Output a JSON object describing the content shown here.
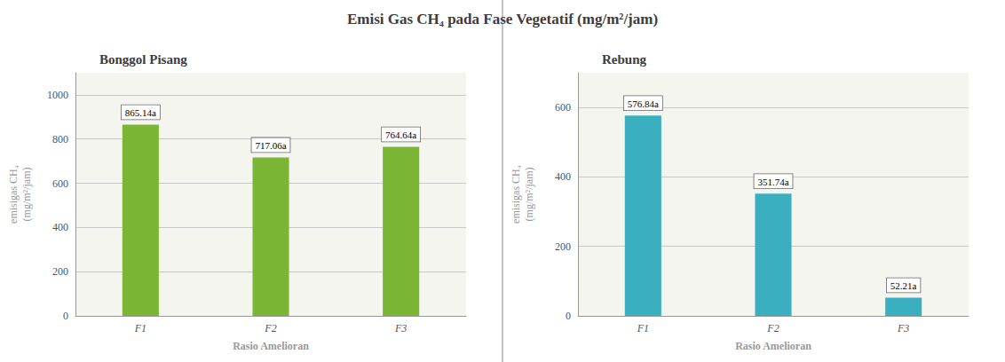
{
  "title": "Emisi Gas CH₄ pada Fase Vegetatif (mg/m²/jam)",
  "chart_data": [
    {
      "type": "bar",
      "title": "Bonggol Pisang",
      "xlabel": "Rasio Amelioran",
      "ylabel": "emisigas CH₄\n(mg/m²/jam)",
      "categories": [
        "F1",
        "F2",
        "F3"
      ],
      "values": [
        865.14,
        717.06,
        764.64
      ],
      "value_labels": [
        "865.14a",
        "717.06a",
        "764.64a"
      ],
      "color": "#7ab533",
      "ylim": [
        0,
        1100
      ],
      "yticks": [
        0,
        200,
        400,
        600,
        800,
        1000
      ],
      "grid": true,
      "data_labels": true
    },
    {
      "type": "bar",
      "title": "Rebung",
      "xlabel": "Rasio Amelioran",
      "ylabel": "emisigas CH₄\n(mg/m²/jam)",
      "categories": [
        "F1",
        "F2",
        "F3"
      ],
      "values": [
        576.84,
        351.74,
        52.21
      ],
      "value_labels": [
        "576.84a",
        "351.74a",
        "52.21a"
      ],
      "color": "#3aafbf",
      "ylim": [
        0,
        700
      ],
      "yticks": [
        0,
        200,
        400,
        600
      ],
      "grid": true,
      "data_labels": true
    }
  ]
}
